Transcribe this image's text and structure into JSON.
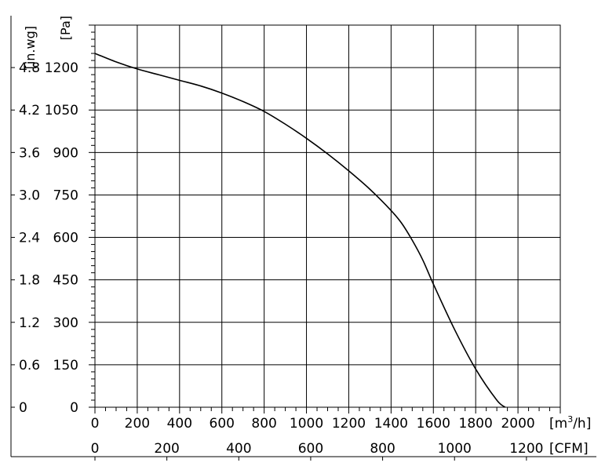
{
  "chart_data": {
    "type": "line",
    "x_unit_label": "[m³/h]",
    "x_unit_main": "[m",
    "x_unit_sup": "3",
    "x_unit_end": "/h]",
    "x2_unit_label": "[CFM]",
    "y_unit_label": "[Pa]",
    "y2_unit_label": "[in.wg]",
    "xlim": [
      0,
      2200
    ],
    "ylim": [
      0,
      1350
    ],
    "x_ticks": [
      0,
      200,
      400,
      600,
      800,
      1000,
      1200,
      1400,
      1600,
      1800,
      2000
    ],
    "x_tick_labels": [
      "0",
      "200",
      "400",
      "600",
      "800",
      "1000",
      "1200",
      "1400",
      "1600",
      "1800",
      "2000"
    ],
    "x2_ticks": [
      0,
      340,
      680,
      1020,
      1360,
      1700,
      2040
    ],
    "x2_tick_labels": [
      "0",
      "200",
      "400",
      "600",
      "800",
      "1000",
      "1200"
    ],
    "y_ticks": [
      0,
      150,
      300,
      450,
      600,
      750,
      900,
      1050,
      1200
    ],
    "y_tick_labels": [
      "0",
      "150",
      "300",
      "450",
      "600",
      "750",
      "900",
      "1050",
      "1200"
    ],
    "y2_tick_labels": [
      "0",
      "0.6",
      "1.2",
      "1.8",
      "2.4",
      "3.0",
      "3.6",
      "4.2",
      "4.8"
    ],
    "grid": true,
    "series": [
      {
        "x": [
          0,
          100,
          200,
          300,
          400,
          500,
          600,
          700,
          800,
          900,
          1000,
          1100,
          1200,
          1300,
          1400,
          1450,
          1500,
          1550,
          1600,
          1700,
          1800,
          1900,
          1940
        ],
        "y": [
          1250,
          1220,
          1195,
          1175,
          1155,
          1135,
          1110,
          1080,
          1045,
          1000,
          950,
          895,
          835,
          770,
          695,
          650,
          590,
          520,
          435,
          275,
          135,
          25,
          0
        ]
      }
    ]
  }
}
